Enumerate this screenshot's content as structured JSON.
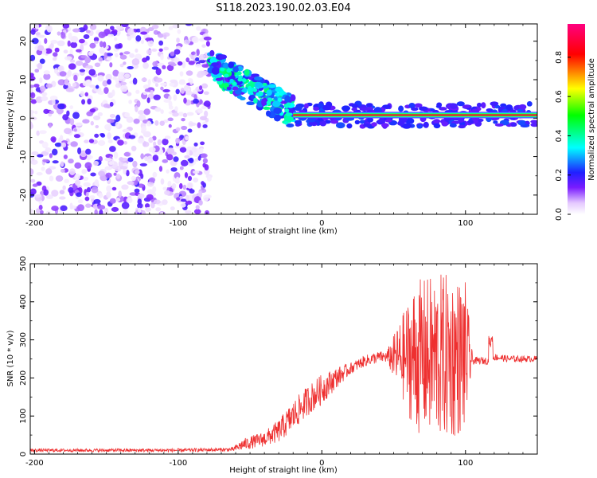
{
  "title": "S118.2023.190.02.03.E04",
  "chart_data": [
    {
      "type": "heatmap",
      "title": "S118.2023.190.02.03.E04",
      "xlabel": "Height of straight line (km)",
      "ylabel": "Frequency (Hz)",
      "xlim": [
        -203,
        150
      ],
      "ylim": [
        -25,
        24.5
      ],
      "xticks": [
        -200,
        -100,
        0,
        100
      ],
      "yticks": [
        -20,
        -10,
        0,
        10,
        20
      ],
      "grid": false,
      "colorbar": {
        "label": "Normalized spectral amplitude",
        "range": [
          0.0,
          0.97
        ],
        "ticks": [
          0.0,
          0.2,
          0.4,
          0.6,
          0.8
        ],
        "colors": [
          "#ffffff",
          "#e4c8ff",
          "#7a1cff",
          "#2020ff",
          "#00ffff",
          "#00ff00",
          "#ffff00",
          "#ff0000",
          "#ff0080"
        ]
      },
      "features": [
        {
          "name": "noise",
          "x_range": [
            -203,
            -78
          ],
          "y_range": [
            -25,
            24.5
          ],
          "amplitude": [
            0.02,
            0.2
          ]
        },
        {
          "name": "scatter",
          "x_range": [
            -78,
            -20
          ],
          "y_range": [
            0,
            14
          ],
          "amplitude": [
            0.15,
            0.45
          ]
        },
        {
          "name": "carrier",
          "x_range": [
            -20,
            150
          ],
          "y": 0.8,
          "amplitude": 0.9
        }
      ]
    },
    {
      "type": "line",
      "title": "",
      "xlabel": "Height of straight line (km)",
      "ylabel": "SNR (10 * v/v)",
      "xlim": [
        -203,
        150
      ],
      "ylim": [
        0,
        500
      ],
      "xticks": [
        -200,
        -100,
        0,
        100
      ],
      "yticks": [
        0,
        100,
        200,
        300,
        400,
        500
      ],
      "grid": false,
      "color": "#ee3030",
      "trend": {
        "x": [
          -203,
          -150,
          -100,
          -62,
          -55,
          -40,
          -30,
          -20,
          -10,
          0,
          10,
          20,
          30,
          40,
          50,
          60,
          70,
          80,
          90,
          100,
          105,
          110,
          117,
          120,
          130,
          140,
          150
        ],
        "y": [
          10,
          10,
          10,
          12,
          25,
          40,
          60,
          100,
          140,
          170,
          200,
          225,
          245,
          255,
          255,
          255,
          255,
          255,
          255,
          255,
          245,
          245,
          245,
          255,
          250,
          250,
          250
        ]
      },
      "spread": {
        "x": [
          -203,
          -63,
          -55,
          -40,
          -20,
          0,
          20,
          45,
          55,
          65,
          80,
          90,
          100,
          105,
          150
        ],
        "y": [
          4,
          5,
          15,
          20,
          40,
          40,
          15,
          15,
          100,
          200,
          220,
          220,
          200,
          10,
          8
        ]
      }
    }
  ]
}
